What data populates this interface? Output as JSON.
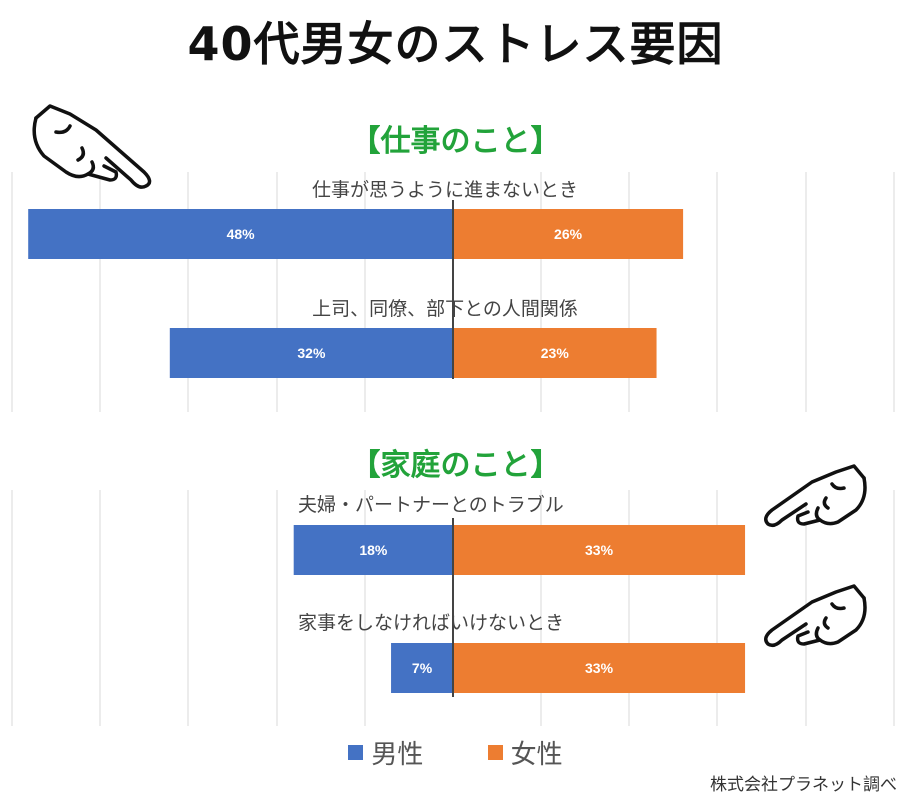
{
  "title": "40代男女のストレス要因",
  "colors": {
    "male": "#4472C4",
    "female": "#ED7D31",
    "section": "#22A33A"
  },
  "legend": {
    "male_label": "男性",
    "female_label": "女性"
  },
  "source": "株式会社プラネット調べ",
  "sections": [
    {
      "title": "【仕事のこと】"
    },
    {
      "title": "【家庭のこと】"
    }
  ],
  "chart_data": {
    "type": "bar",
    "orientation": "horizontal-diverging",
    "unit": "%",
    "xlim": [
      -50,
      50
    ],
    "grid": true,
    "categories": [
      "仕事が思うように進まないとき",
      "上司、同僚、部下との人間関係",
      "夫婦・パートナーとのトラブル",
      "家事をしなければいけないとき"
    ],
    "series": [
      {
        "name": "男性",
        "values": [
          48,
          32,
          18,
          7
        ],
        "data_labels": [
          "48%",
          "32%",
          "18%",
          "7%"
        ]
      },
      {
        "name": "女性",
        "values": [
          26,
          23,
          33,
          33
        ],
        "data_labels": [
          "26%",
          "23%",
          "33%",
          "33%"
        ]
      }
    ]
  }
}
